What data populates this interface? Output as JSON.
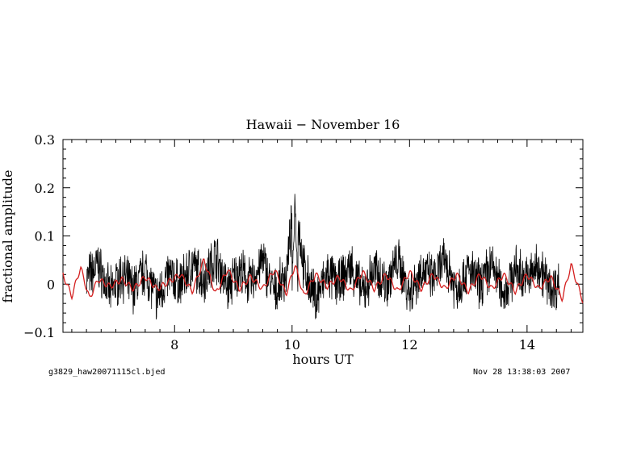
{
  "chart_data": {
    "type": "line",
    "title": "Hawaii − November 16",
    "xlabel": "hours UT",
    "ylabel": "fractional  amplitude",
    "xlim": [
      6.1,
      14.95
    ],
    "ylim": [
      -0.1,
      0.3
    ],
    "x_ticks": [
      8,
      10,
      12,
      14
    ],
    "x_tick_labels": [
      "8",
      "10",
      "12",
      "14"
    ],
    "y_ticks": [
      -0.1,
      0,
      0.1,
      0.2,
      0.3
    ],
    "y_tick_labels": [
      "−0.1",
      "0",
      "0.1",
      "0.2",
      "0.3"
    ],
    "grid": false,
    "series": [
      {
        "color": "#000000",
        "style": "noisy light curve",
        "x": [
          6.5,
          6.7,
          6.9,
          7.1,
          7.3,
          7.5,
          7.7,
          7.9,
          8.1,
          8.3,
          8.5,
          8.7,
          8.9,
          9.1,
          9.3,
          9.5,
          9.7,
          9.9,
          10.05,
          10.2,
          10.4,
          10.6,
          10.8,
          11.0,
          11.2,
          11.4,
          11.6,
          11.8,
          12.0,
          12.2,
          12.4,
          12.6,
          12.8,
          13.0,
          13.2,
          13.4,
          13.6,
          13.8,
          14.0,
          14.2,
          14.4,
          14.55
        ],
        "y": [
          0.01,
          0.04,
          -0.02,
          0.02,
          -0.01,
          0.03,
          -0.03,
          0.02,
          0.0,
          0.04,
          0.01,
          0.06,
          -0.01,
          0.03,
          0.0,
          0.05,
          -0.02,
          0.02,
          0.19,
          0.03,
          -0.03,
          0.02,
          0.0,
          0.04,
          -0.02,
          0.03,
          0.0,
          0.05,
          -0.02,
          0.03,
          0.01,
          0.05,
          -0.01,
          0.03,
          0.0,
          0.04,
          -0.02,
          0.03,
          0.01,
          0.04,
          -0.01,
          0.0
        ]
      },
      {
        "color": "#d42020",
        "style": "model fit",
        "x": [
          6.1,
          6.25,
          6.4,
          6.55,
          6.7,
          6.9,
          7.1,
          7.3,
          7.5,
          7.7,
          7.9,
          8.1,
          8.3,
          8.5,
          8.7,
          8.9,
          9.1,
          9.3,
          9.5,
          9.7,
          9.9,
          10.05,
          10.2,
          10.4,
          10.6,
          10.8,
          11.0,
          11.2,
          11.4,
          11.6,
          11.8,
          12.0,
          12.2,
          12.4,
          12.6,
          12.8,
          13.0,
          13.2,
          13.4,
          13.6,
          13.8,
          14.0,
          14.2,
          14.4,
          14.6,
          14.75,
          14.95
        ],
        "y": [
          0.02,
          -0.025,
          0.035,
          -0.03,
          0.01,
          -0.005,
          0.01,
          -0.01,
          0.015,
          -0.01,
          0.005,
          0.02,
          -0.015,
          0.05,
          -0.02,
          0.03,
          -0.01,
          0.015,
          -0.01,
          0.03,
          -0.02,
          0.04,
          -0.025,
          0.02,
          -0.005,
          0.015,
          -0.015,
          0.025,
          -0.01,
          0.02,
          -0.015,
          0.025,
          -0.01,
          0.02,
          -0.01,
          0.02,
          -0.015,
          0.02,
          -0.01,
          0.02,
          -0.015,
          0.02,
          -0.01,
          0.015,
          -0.03,
          0.04,
          -0.035
        ]
      }
    ]
  },
  "footer": {
    "left": "g3829_haw20071115cl.bjed",
    "right": "Nov 28 13:38:03 2007"
  },
  "colors": {
    "axis": "#000000",
    "data": "#000000",
    "model": "#d42020",
    "background": "#ffffff"
  }
}
